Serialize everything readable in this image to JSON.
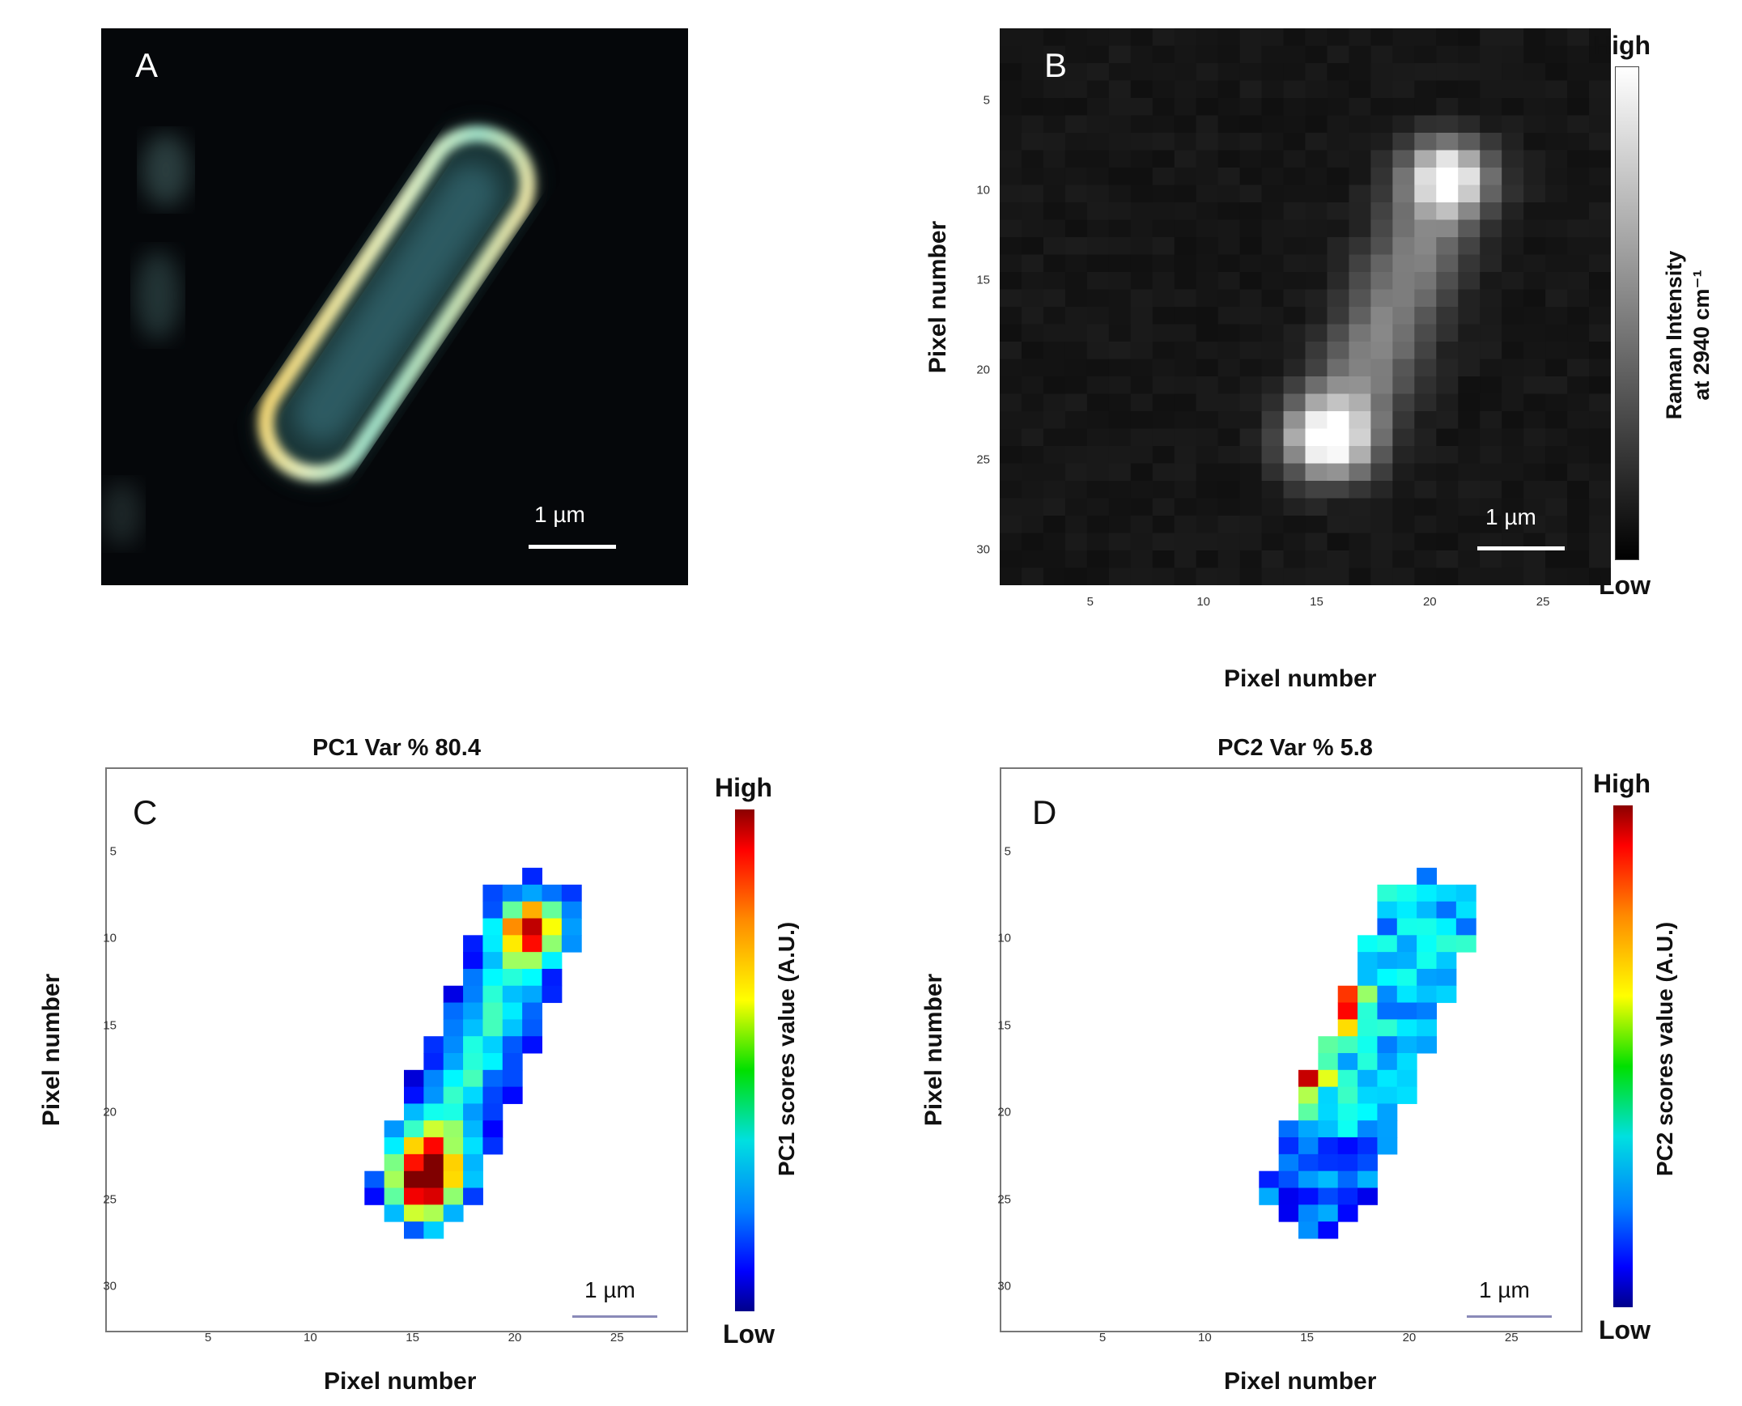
{
  "panel_a": {
    "letter": "A",
    "scalebar": "1 µm"
  },
  "panel_b": {
    "letter": "B",
    "ylabel": "Pixel number",
    "xlabel": "Pixel number",
    "scalebar": "1 µm",
    "colorbar": {
      "high": "High",
      "low": "Low",
      "label_line1": "Raman Intensity",
      "label_line2": "at 2940 cm⁻¹"
    }
  },
  "panel_c": {
    "letter": "C",
    "title": "PC1 Var % 80.4",
    "ylabel": "Pixel number",
    "xlabel": "Pixel number",
    "scalebar": "1 µm",
    "colorbar": {
      "high": "High",
      "low": "Low",
      "label": "PC1 scores value (A.U.)"
    }
  },
  "panel_d": {
    "letter": "D",
    "title": "PC2 Var % 5.8",
    "ylabel": "Pixel number",
    "xlabel": "Pixel number",
    "scalebar": "1 µm",
    "colorbar": {
      "high": "High",
      "low": "Low",
      "label": "PC2 scores value (A.U.)"
    }
  },
  "chart_data": [
    {
      "type": "heatmap",
      "panel": "B",
      "x_ticks": [
        5,
        10,
        15,
        20,
        25
      ],
      "y_ticks": [
        5,
        10,
        15,
        20,
        25,
        30
      ],
      "xlim": [
        1,
        28
      ],
      "ylim": [
        1,
        32
      ]
    },
    {
      "type": "heatmap",
      "panel": "C",
      "title": "PC1 Var % 80.4",
      "x_ticks": [
        5,
        10,
        15,
        20,
        25
      ],
      "y_ticks": [
        5,
        10,
        15,
        20,
        25,
        30
      ],
      "xlim": [
        1,
        28
      ],
      "ylim": [
        1,
        32
      ]
    },
    {
      "type": "heatmap",
      "panel": "D",
      "title": "PC2 Var % 5.8",
      "x_ticks": [
        5,
        10,
        15,
        20,
        25
      ],
      "y_ticks": [
        5,
        10,
        15,
        20,
        25,
        30
      ],
      "xlim": [
        1,
        28
      ],
      "ylim": [
        1,
        32
      ]
    }
  ]
}
